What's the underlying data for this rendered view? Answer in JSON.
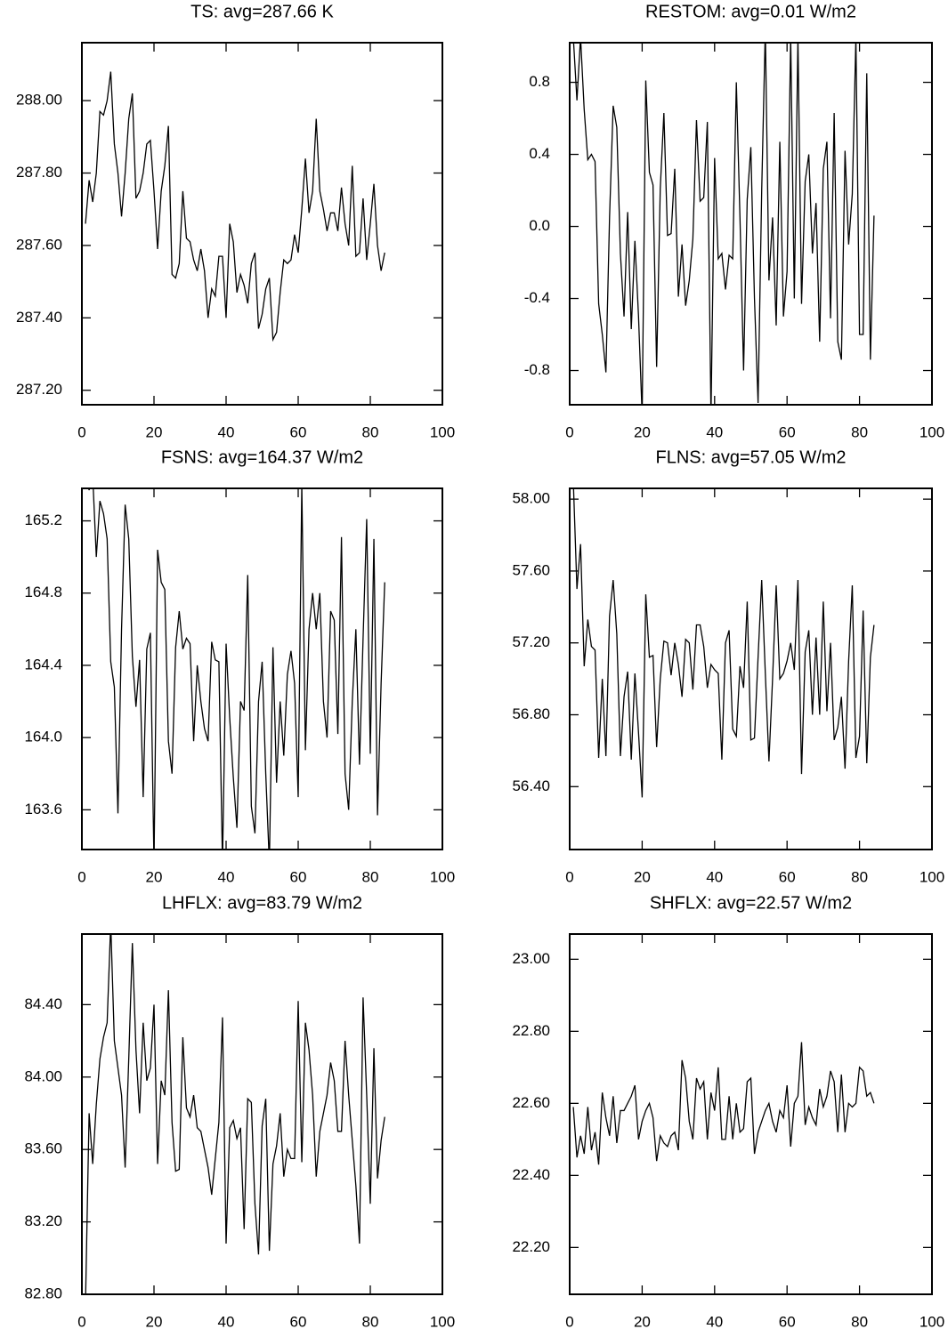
{
  "chart_data": [
    {
      "type": "line",
      "title": "TS: avg=287.66 K",
      "color": "#000000",
      "x": [
        1,
        2,
        3,
        4,
        5,
        6,
        7,
        8,
        9,
        10,
        11,
        12,
        13,
        14,
        15,
        16,
        17,
        18,
        19,
        20,
        21,
        22,
        23,
        24,
        25,
        26,
        27,
        28,
        29,
        30,
        31,
        32,
        33,
        34,
        35,
        36,
        37,
        38,
        39,
        40,
        41,
        42,
        43,
        44,
        45,
        46,
        47,
        48,
        49,
        50,
        51,
        52,
        53,
        54,
        55,
        56,
        57,
        58,
        59,
        60,
        61,
        62,
        63,
        64,
        65,
        66,
        67,
        68,
        69,
        70,
        71,
        72,
        73,
        74,
        75,
        76,
        77,
        78,
        79,
        80,
        81,
        82,
        83,
        84
      ],
      "values": [
        287.66,
        287.78,
        287.72,
        287.8,
        287.97,
        287.96,
        288.0,
        288.08,
        287.88,
        287.8,
        287.68,
        287.8,
        287.95,
        288.02,
        287.73,
        287.75,
        287.8,
        287.88,
        287.89,
        287.75,
        287.59,
        287.75,
        287.82,
        287.93,
        287.52,
        287.51,
        287.55,
        287.75,
        287.62,
        287.61,
        287.56,
        287.53,
        287.59,
        287.53,
        287.4,
        287.48,
        287.46,
        287.57,
        287.57,
        287.4,
        287.66,
        287.61,
        287.47,
        287.52,
        287.49,
        287.44,
        287.55,
        287.58,
        287.37,
        287.41,
        287.48,
        287.51,
        287.34,
        287.36,
        287.47,
        287.56,
        287.55,
        287.56,
        287.63,
        287.58,
        287.7,
        287.84,
        287.69,
        287.75,
        287.95,
        287.75,
        287.7,
        287.64,
        287.69,
        287.69,
        287.64,
        287.76,
        287.66,
        287.6,
        287.82,
        287.57,
        287.58,
        287.73,
        287.56,
        287.66,
        287.77,
        287.6,
        287.53,
        287.58
      ],
      "xlim": [
        0,
        100
      ],
      "xticks": [
        0,
        20,
        40,
        60,
        80,
        100
      ],
      "ylim": [
        287.16,
        288.16
      ],
      "yticks": [
        {
          "value": 287.2,
          "label": "287.20"
        },
        {
          "value": 287.4,
          "label": "287.40"
        },
        {
          "value": 287.6,
          "label": "287.60"
        },
        {
          "value": 287.8,
          "label": "287.80"
        },
        {
          "value": 288.0,
          "label": "288.00"
        }
      ]
    },
    {
      "type": "line",
      "title": "RESTOM: avg=0.01 W/m2",
      "color": "#000000",
      "x": [
        1,
        2,
        3,
        4,
        5,
        6,
        7,
        8,
        9,
        10,
        11,
        12,
        13,
        14,
        15,
        16,
        17,
        18,
        19,
        20,
        21,
        22,
        23,
        24,
        25,
        26,
        27,
        28,
        29,
        30,
        31,
        32,
        33,
        34,
        35,
        36,
        37,
        38,
        39,
        40,
        41,
        42,
        43,
        44,
        45,
        46,
        47,
        48,
        49,
        50,
        51,
        52,
        53,
        54,
        55,
        56,
        57,
        58,
        59,
        60,
        61,
        62,
        63,
        64,
        65,
        66,
        67,
        68,
        69,
        70,
        71,
        72,
        73,
        74,
        75,
        76,
        77,
        78,
        79,
        80,
        81,
        82,
        83,
        84
      ],
      "values": [
        1.05,
        0.7,
        1.05,
        0.65,
        0.37,
        0.4,
        0.36,
        -0.43,
        -0.6,
        -0.81,
        0.05,
        0.67,
        0.55,
        -0.15,
        -0.5,
        0.08,
        -0.57,
        -0.08,
        -0.5,
        -1.05,
        0.81,
        0.3,
        0.23,
        -0.78,
        0.21,
        0.63,
        -0.05,
        -0.04,
        0.32,
        -0.39,
        -0.1,
        -0.44,
        -0.3,
        -0.07,
        0.59,
        0.14,
        0.16,
        0.58,
        -1.05,
        0.38,
        -0.18,
        -0.15,
        -0.35,
        -0.16,
        -0.18,
        0.8,
        0.05,
        -0.8,
        0.15,
        0.44,
        -0.4,
        -0.98,
        0.2,
        1.1,
        -0.3,
        0.05,
        -0.55,
        0.47,
        -0.5,
        -0.25,
        1.05,
        -0.4,
        1.05,
        -0.43,
        0.25,
        0.4,
        -0.15,
        0.13,
        -0.64,
        0.32,
        0.47,
        -0.51,
        0.63,
        -0.64,
        -0.74,
        0.42,
        -0.1,
        0.18,
        1.05,
        -0.6,
        -0.6,
        0.85,
        -0.74,
        0.06
      ],
      "xlim": [
        0,
        100
      ],
      "xticks": [
        0,
        20,
        40,
        60,
        80,
        100
      ],
      "ylim": [
        -0.99,
        1.02
      ],
      "yticks": [
        -0.8,
        -0.4,
        {
          "value": 0,
          "label": "0.0"
        },
        0.4,
        0.8
      ]
    },
    {
      "type": "line",
      "title": "FSNS: avg=164.37 W/m2",
      "color": "#000000",
      "x": [
        1,
        2,
        3,
        4,
        5,
        6,
        7,
        8,
        9,
        10,
        11,
        12,
        13,
        14,
        15,
        16,
        17,
        18,
        19,
        20,
        21,
        22,
        23,
        24,
        25,
        26,
        27,
        28,
        29,
        30,
        31,
        32,
        33,
        34,
        35,
        36,
        37,
        38,
        39,
        40,
        41,
        42,
        43,
        44,
        45,
        46,
        47,
        48,
        49,
        50,
        51,
        52,
        53,
        54,
        55,
        56,
        57,
        58,
        59,
        60,
        61,
        62,
        63,
        64,
        65,
        66,
        67,
        68,
        69,
        70,
        71,
        72,
        73,
        74,
        75,
        76,
        77,
        78,
        79,
        80,
        81,
        82,
        83,
        84
      ],
      "values": [
        165.45,
        165.37,
        165.45,
        165.0,
        165.31,
        165.24,
        165.1,
        164.42,
        164.28,
        163.58,
        164.6,
        165.29,
        165.1,
        164.45,
        164.17,
        164.43,
        163.67,
        164.49,
        164.58,
        163.3,
        165.04,
        164.86,
        164.82,
        163.98,
        163.8,
        164.5,
        164.7,
        164.49,
        164.55,
        164.52,
        163.98,
        164.4,
        164.2,
        164.05,
        163.98,
        164.53,
        164.43,
        164.42,
        163.3,
        164.52,
        164.11,
        163.78,
        163.5,
        164.2,
        164.15,
        164.9,
        163.62,
        163.47,
        164.2,
        164.42,
        163.8,
        163.3,
        164.5,
        163.75,
        164.2,
        163.9,
        164.35,
        164.48,
        164.3,
        163.67,
        165.4,
        163.93,
        164.6,
        164.8,
        164.6,
        164.8,
        164.2,
        164.0,
        164.7,
        164.65,
        164.02,
        165.11,
        163.8,
        163.6,
        164.2,
        164.6,
        163.85,
        164.55,
        165.21,
        163.91,
        165.1,
        163.57,
        164.3,
        164.86
      ],
      "xlim": [
        0,
        100
      ],
      "xticks": [
        0,
        20,
        40,
        60,
        80,
        100
      ],
      "ylim": [
        163.38,
        165.38
      ],
      "yticks": [
        163.6,
        {
          "value": 164,
          "label": "164.0"
        },
        164.4,
        164.8,
        165.2
      ]
    },
    {
      "type": "line",
      "title": "FLNS: avg=57.05 W/m2",
      "color": "#000000",
      "x": [
        1,
        2,
        3,
        4,
        5,
        6,
        7,
        8,
        9,
        10,
        11,
        12,
        13,
        14,
        15,
        16,
        17,
        18,
        19,
        20,
        21,
        22,
        23,
        24,
        25,
        26,
        27,
        28,
        29,
        30,
        31,
        32,
        33,
        34,
        35,
        36,
        37,
        38,
        39,
        40,
        41,
        42,
        43,
        44,
        45,
        46,
        47,
        48,
        49,
        50,
        51,
        52,
        53,
        54,
        55,
        56,
        57,
        58,
        59,
        60,
        61,
        62,
        63,
        64,
        65,
        66,
        67,
        68,
        69,
        70,
        71,
        72,
        73,
        74,
        75,
        76,
        77,
        78,
        79,
        80,
        81,
        82,
        83,
        84
      ],
      "values": [
        58.1,
        57.5,
        57.75,
        57.07,
        57.33,
        57.18,
        57.16,
        56.56,
        57.0,
        56.57,
        57.35,
        57.55,
        57.25,
        56.57,
        56.9,
        57.04,
        56.55,
        57.03,
        56.7,
        56.34,
        57.47,
        57.12,
        57.13,
        56.62,
        57.0,
        57.21,
        57.2,
        57.02,
        57.2,
        57.08,
        56.9,
        57.22,
        57.2,
        56.94,
        57.3,
        57.3,
        57.18,
        56.95,
        57.08,
        57.05,
        57.03,
        56.55,
        57.2,
        57.27,
        56.72,
        56.68,
        57.07,
        56.95,
        57.43,
        56.66,
        56.67,
        57.12,
        57.55,
        57.03,
        56.54,
        57.0,
        57.52,
        57.0,
        57.03,
        57.1,
        57.2,
        57.05,
        57.55,
        56.47,
        57.15,
        57.27,
        56.8,
        57.23,
        56.8,
        57.43,
        56.82,
        57.2,
        56.66,
        56.73,
        56.9,
        56.5,
        57.1,
        57.52,
        56.56,
        56.68,
        57.38,
        56.53,
        57.12,
        57.3
      ],
      "xlim": [
        0,
        100
      ],
      "xticks": [
        0,
        20,
        40,
        60,
        80,
        100
      ],
      "ylim": [
        56.05,
        58.06
      ],
      "yticks": [
        {
          "value": 56.4,
          "label": "56.40"
        },
        {
          "value": 56.8,
          "label": "56.80"
        },
        {
          "value": 57.2,
          "label": "57.20"
        },
        {
          "value": 57.6,
          "label": "57.60"
        },
        {
          "value": 58,
          "label": "58.00"
        }
      ]
    },
    {
      "type": "line",
      "title": "LHFLX: avg=83.79 W/m2",
      "color": "#000000",
      "x": [
        1,
        2,
        3,
        4,
        5,
        6,
        7,
        8,
        9,
        10,
        11,
        12,
        13,
        14,
        15,
        16,
        17,
        18,
        19,
        20,
        21,
        22,
        23,
        24,
        25,
        26,
        27,
        28,
        29,
        30,
        31,
        32,
        33,
        34,
        35,
        36,
        37,
        38,
        39,
        40,
        41,
        42,
        43,
        44,
        45,
        46,
        47,
        48,
        49,
        50,
        51,
        52,
        53,
        54,
        55,
        56,
        57,
        58,
        59,
        60,
        61,
        62,
        63,
        64,
        65,
        66,
        67,
        68,
        69,
        70,
        71,
        72,
        73,
        74,
        75,
        76,
        77,
        78,
        79,
        80,
        81,
        82,
        83,
        84
      ],
      "values": [
        82.75,
        83.8,
        83.52,
        83.85,
        84.1,
        84.22,
        84.3,
        84.85,
        84.2,
        84.05,
        83.9,
        83.5,
        84.1,
        84.74,
        84.15,
        83.8,
        84.3,
        83.98,
        84.05,
        84.4,
        83.52,
        83.98,
        83.9,
        84.48,
        83.75,
        83.48,
        83.49,
        84.22,
        83.83,
        83.78,
        83.9,
        83.72,
        83.7,
        83.6,
        83.5,
        83.35,
        83.55,
        83.75,
        84.33,
        83.08,
        83.72,
        83.76,
        83.66,
        83.72,
        83.16,
        83.88,
        83.86,
        83.3,
        83.02,
        83.73,
        83.88,
        83.04,
        83.52,
        83.62,
        83.8,
        83.45,
        83.6,
        83.55,
        83.55,
        84.42,
        83.53,
        84.3,
        84.15,
        83.9,
        83.45,
        83.7,
        83.8,
        83.9,
        84.08,
        83.98,
        83.7,
        83.7,
        84.2,
        83.9,
        83.65,
        83.4,
        83.08,
        84.44,
        83.9,
        83.3,
        84.16,
        83.44,
        83.65,
        83.78
      ],
      "xlim": [
        0,
        100
      ],
      "xticks": [
        0,
        20,
        40,
        60,
        80,
        100
      ],
      "ylim": [
        82.8,
        84.79
      ],
      "yticks": [
        {
          "value": 82.8,
          "label": "82.80"
        },
        {
          "value": 83.2,
          "label": "83.20"
        },
        {
          "value": 83.6,
          "label": "83.60"
        },
        {
          "value": 84,
          "label": "84.00"
        },
        {
          "value": 84.4,
          "label": "84.40"
        }
      ]
    },
    {
      "type": "line",
      "title": "SHFLX: avg=22.57 W/m2",
      "color": "#000000",
      "x": [
        1,
        2,
        3,
        4,
        5,
        6,
        7,
        8,
        9,
        10,
        11,
        12,
        13,
        14,
        15,
        16,
        17,
        18,
        19,
        20,
        21,
        22,
        23,
        24,
        25,
        26,
        27,
        28,
        29,
        30,
        31,
        32,
        33,
        34,
        35,
        36,
        37,
        38,
        39,
        40,
        41,
        42,
        43,
        44,
        45,
        46,
        47,
        48,
        49,
        50,
        51,
        52,
        53,
        54,
        55,
        56,
        57,
        58,
        59,
        60,
        61,
        62,
        63,
        64,
        65,
        66,
        67,
        68,
        69,
        70,
        71,
        72,
        73,
        74,
        75,
        76,
        77,
        78,
        79,
        80,
        81,
        82,
        83,
        84
      ],
      "values": [
        22.59,
        22.45,
        22.51,
        22.46,
        22.59,
        22.47,
        22.52,
        22.43,
        22.63,
        22.56,
        22.51,
        22.62,
        22.49,
        22.58,
        22.58,
        22.6,
        22.62,
        22.65,
        22.5,
        22.55,
        22.58,
        22.6,
        22.56,
        22.44,
        22.51,
        22.49,
        22.48,
        22.51,
        22.52,
        22.47,
        22.72,
        22.67,
        22.55,
        22.5,
        22.67,
        22.64,
        22.66,
        22.5,
        22.63,
        22.58,
        22.7,
        22.5,
        22.5,
        22.62,
        22.5,
        22.6,
        22.52,
        22.53,
        22.66,
        22.67,
        22.46,
        22.52,
        22.55,
        22.58,
        22.6,
        22.55,
        22.52,
        22.58,
        22.56,
        22.65,
        22.48,
        22.6,
        22.62,
        22.77,
        22.54,
        22.59,
        22.56,
        22.54,
        22.64,
        22.59,
        22.62,
        22.69,
        22.66,
        22.52,
        22.68,
        22.52,
        22.6,
        22.59,
        22.6,
        22.7,
        22.69,
        22.62,
        22.63,
        22.6
      ],
      "xlim": [
        0,
        100
      ],
      "xticks": [
        0,
        20,
        40,
        60,
        80,
        100
      ],
      "ylim": [
        22.07,
        23.07
      ],
      "yticks": [
        {
          "value": 22.2,
          "label": "22.20"
        },
        {
          "value": 22.4,
          "label": "22.40"
        },
        {
          "value": 22.6,
          "label": "22.60"
        },
        {
          "value": 22.8,
          "label": "22.80"
        },
        {
          "value": 23,
          "label": "23.00"
        }
      ]
    }
  ]
}
